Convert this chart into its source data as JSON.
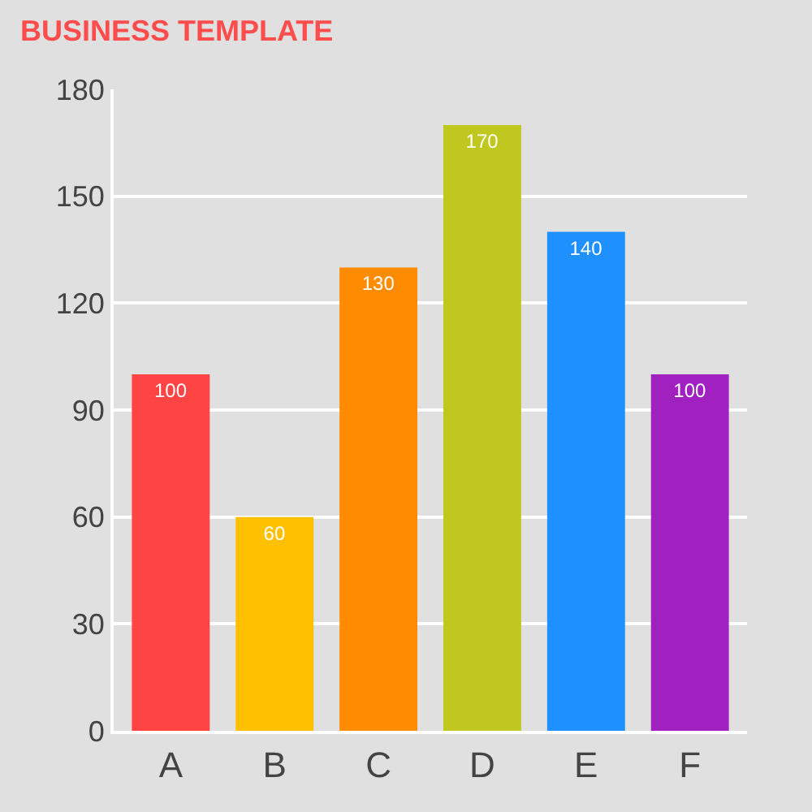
{
  "chart_data": {
    "type": "bar",
    "title": "BUSINESS TEMPLATE",
    "categories": [
      "A",
      "B",
      "C",
      "D",
      "E",
      "F"
    ],
    "values": [
      100,
      60,
      130,
      170,
      140,
      100
    ],
    "colors": [
      "#ff4444",
      "#ffc000",
      "#ff8c00",
      "#c0c820",
      "#1e90ff",
      "#a020c0"
    ],
    "ylim": [
      0,
      180
    ],
    "yticks": [
      0,
      30,
      60,
      90,
      120,
      150,
      180
    ],
    "grid": "y",
    "data_labels": true
  }
}
